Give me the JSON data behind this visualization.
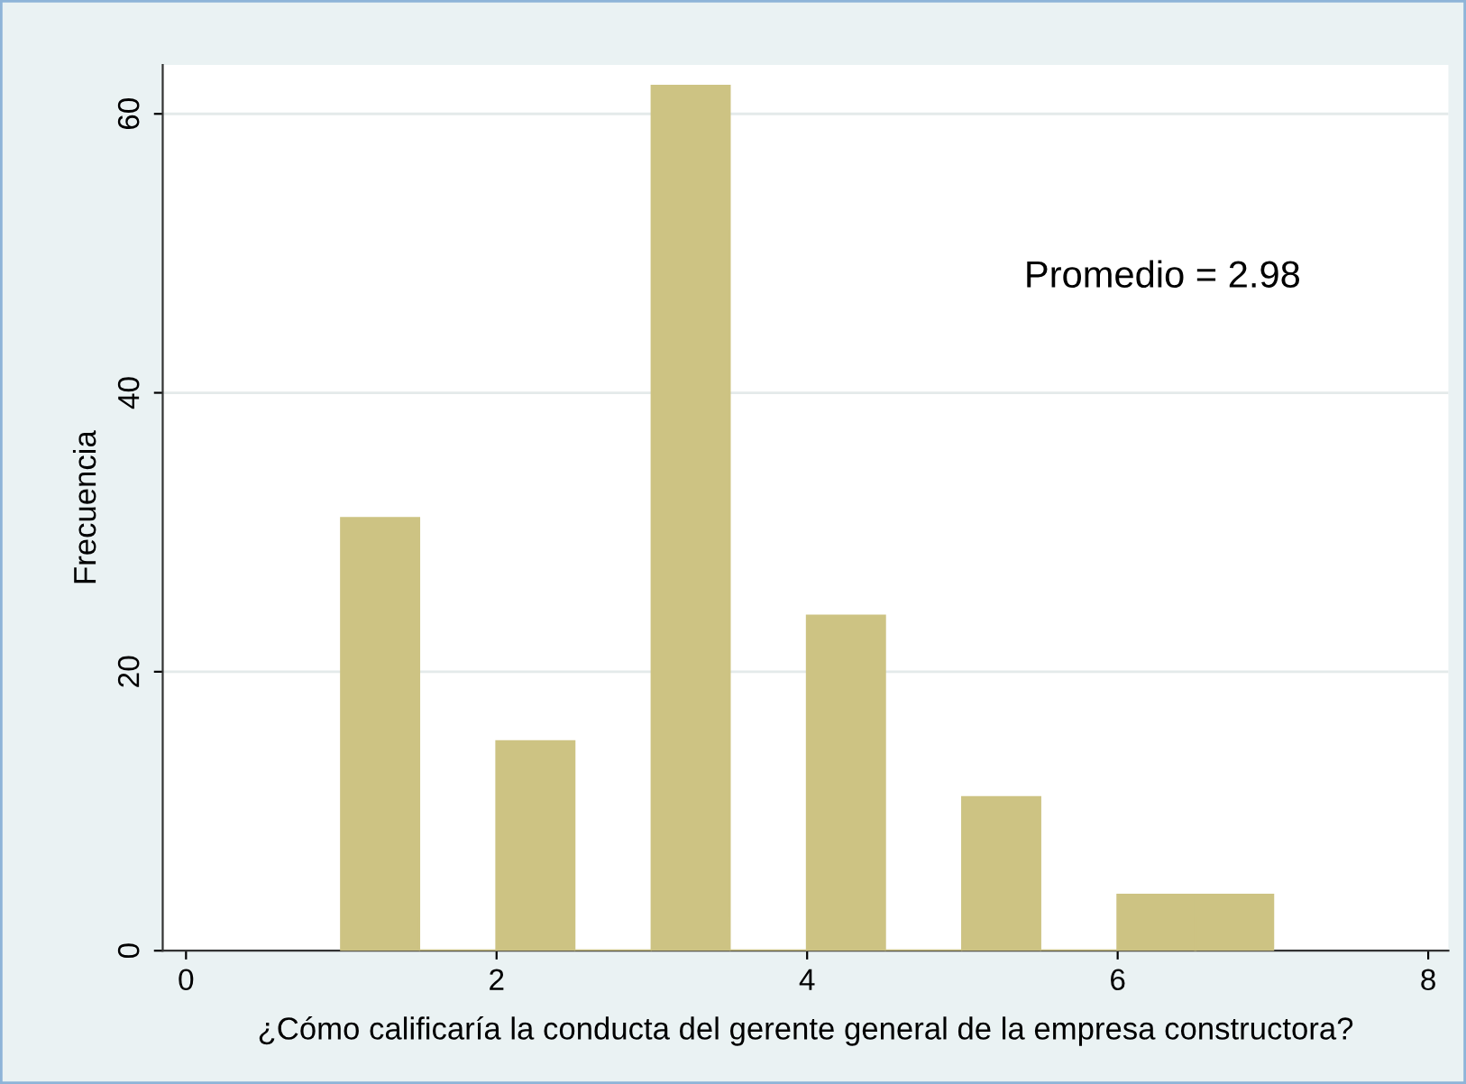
{
  "chart_data": {
    "type": "histogram",
    "xlabel": "¿Cómo calificaría la conducta del gerente general de la empresa constructora?",
    "ylabel": "Frecuencia",
    "annotations": [
      "Promedio = 2.98"
    ],
    "bins": [
      1,
      1.5,
      2,
      2.5,
      3,
      3.5,
      4,
      4.5,
      5,
      5.5,
      6,
      6.5,
      7
    ],
    "values": [
      31,
      0,
      15,
      0,
      62,
      0,
      24,
      0,
      11,
      0,
      4,
      4
    ],
    "color": "#cdc383",
    "xlim": [
      -0.15,
      8.13
    ],
    "ylim": [
      0,
      63.5
    ],
    "xticks": [
      0,
      2,
      4,
      6,
      8
    ],
    "yticks": [
      0,
      20,
      40,
      60
    ],
    "grid": "y"
  }
}
